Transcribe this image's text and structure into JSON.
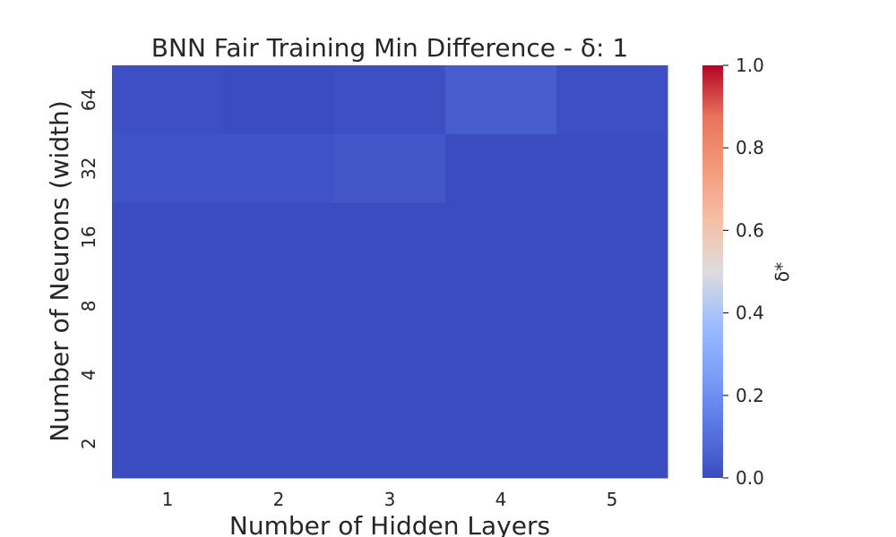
{
  "chart_data": {
    "type": "heatmap",
    "title": "BNN Fair Training Min Difference - δ: 1",
    "xlabel": "Number of Hidden Layers",
    "ylabel": "Number of Neurons (width)",
    "x_categories": [
      "1",
      "2",
      "3",
      "4",
      "5"
    ],
    "y_categories": [
      "64",
      "32",
      "16",
      "8",
      "4",
      "2"
    ],
    "values": [
      [
        0.01,
        0.0,
        0.01,
        0.05,
        0.01
      ],
      [
        0.02,
        0.02,
        0.03,
        0.0,
        0.0
      ],
      [
        0.0,
        0.0,
        0.0,
        0.0,
        0.0
      ],
      [
        0.0,
        0.0,
        0.0,
        0.0,
        0.0
      ],
      [
        0.0,
        0.0,
        0.0,
        0.0,
        0.0
      ],
      [
        0.0,
        0.0,
        0.0,
        0.0,
        0.0
      ]
    ],
    "colorbar": {
      "label": "δ*",
      "range": [
        0.0,
        1.0
      ],
      "ticks": [
        "0.0",
        "0.2",
        "0.4",
        "0.6",
        "0.8",
        "1.0"
      ],
      "colormap": "coolwarm"
    }
  }
}
